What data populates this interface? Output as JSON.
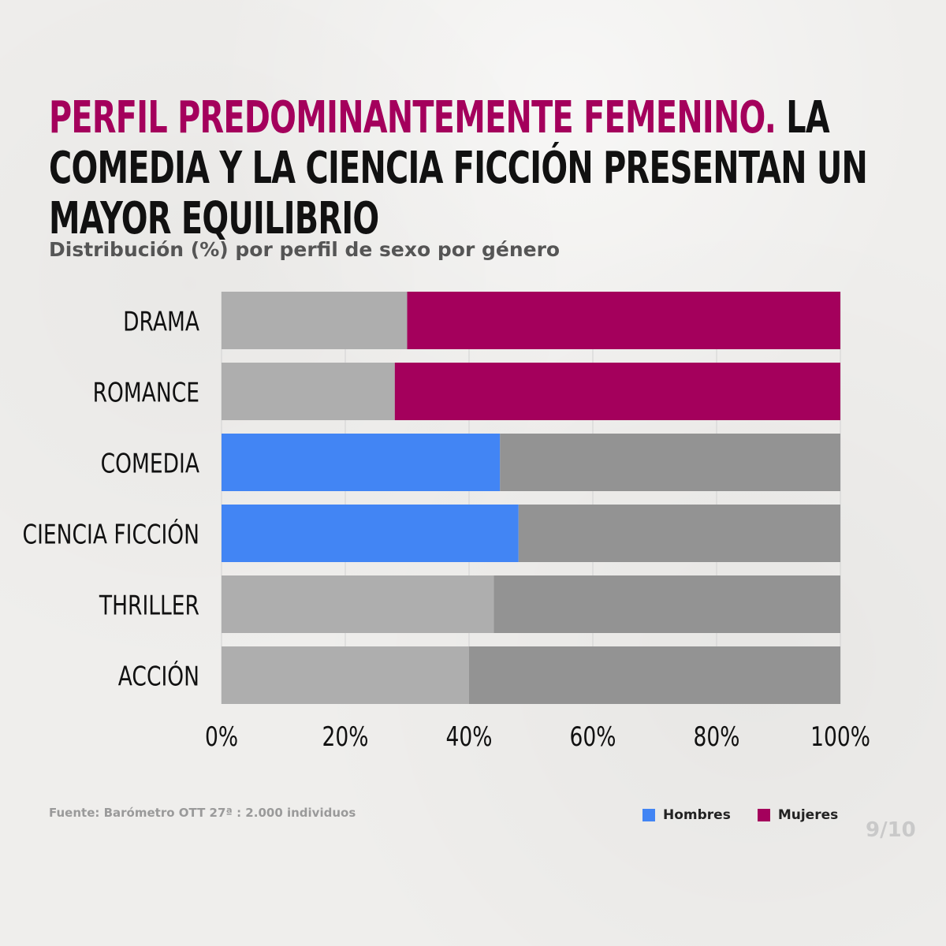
{
  "title": {
    "accent": "PERFIL PREDOMINANTEMENTE FEMENINO.",
    "rest": "LA COMEDIA Y LA CIENCIA FICCIÓN PRESENTAN UN MAYOR EQUILIBRIO"
  },
  "source": "Fuente: Barómetro OTT 27ª : 2.000 individuos",
  "page_number": "9/10",
  "colors": {
    "hombres": "#4285f4",
    "mujeres": "#a4005c",
    "gray_light": "#aeaeae",
    "gray_dark": "#939393"
  },
  "chart_data": {
    "type": "bar",
    "orientation": "horizontal",
    "stacked": true,
    "title": "Distribución (%) por perfil de sexo por género",
    "categories": [
      "DRAMA",
      "ROMANCE",
      "COMEDIA",
      "CIENCIA FICCIÓN",
      "THRILLER",
      "ACCIÓN"
    ],
    "series": [
      {
        "name": "Hombres",
        "values": [
          30,
          28,
          45,
          48,
          44,
          40
        ]
      },
      {
        "name": "Mujeres",
        "values": [
          70,
          72,
          55,
          52,
          56,
          60
        ]
      }
    ],
    "highlight": [
      [
        "none",
        "Mujeres"
      ],
      [
        "none",
        "Mujeres"
      ],
      [
        "Hombres",
        "none"
      ],
      [
        "Hombres",
        "none"
      ],
      [
        "none",
        "none"
      ],
      [
        "none",
        "none"
      ]
    ],
    "xlim": [
      0,
      100
    ],
    "xticks": [
      "0%",
      "20%",
      "40%",
      "60%",
      "80%",
      "100%"
    ],
    "grid": true,
    "legend_position": "bottom-right"
  }
}
